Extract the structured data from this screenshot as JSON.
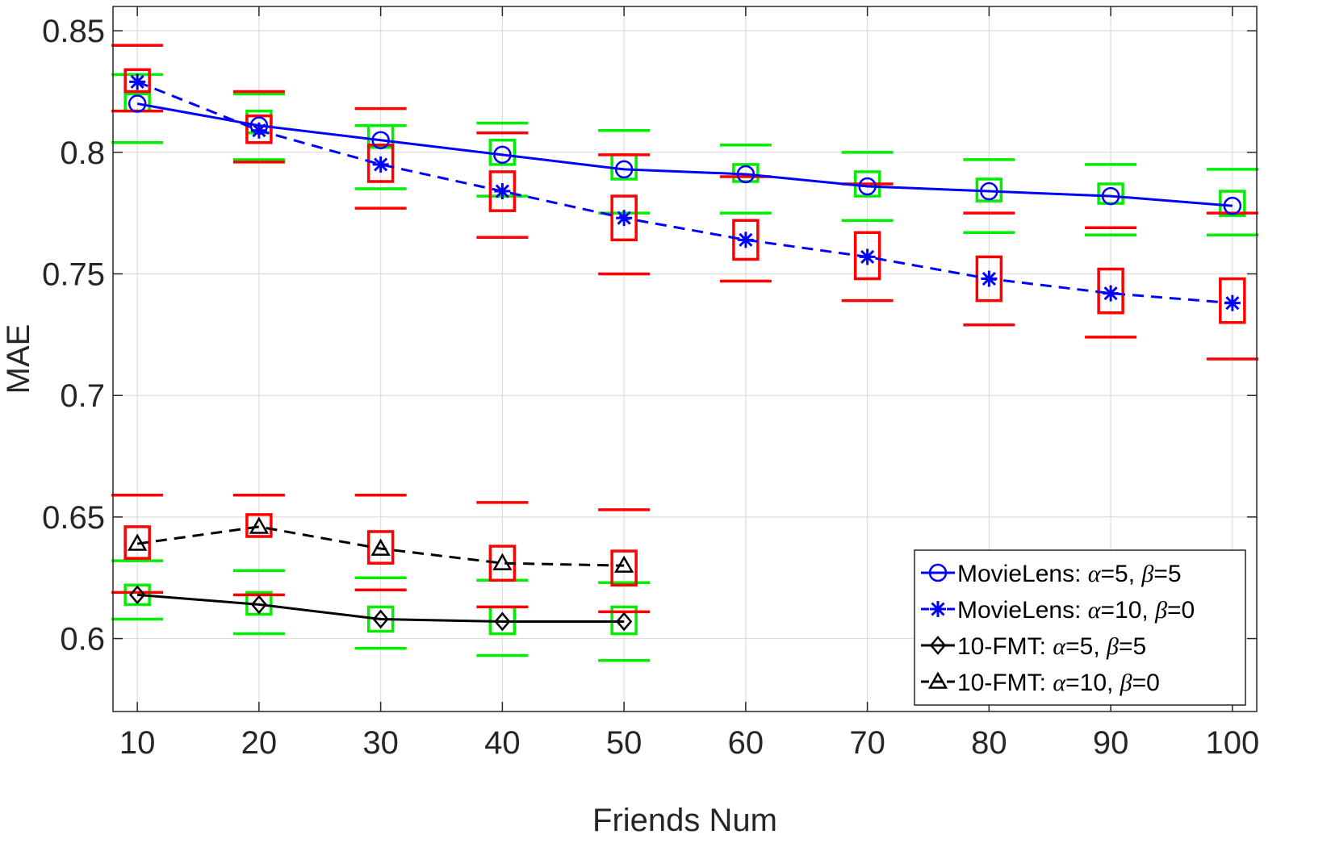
{
  "chart_data": {
    "type": "line",
    "title": "",
    "xlabel": "Friends Num",
    "ylabel": "MAE",
    "xlim": [
      8,
      102
    ],
    "ylim": [
      0.57,
      0.86
    ],
    "x_ticks": [
      10,
      20,
      30,
      40,
      50,
      60,
      70,
      80,
      90,
      100
    ],
    "y_ticks": [
      0.6,
      0.65,
      0.7,
      0.75,
      0.8,
      0.85
    ],
    "y_tick_labels": [
      "0.6",
      "0.65",
      "0.7",
      "0.75",
      "0.8",
      "0.85"
    ],
    "grid": true,
    "legend_position": "bottom-right",
    "colors": {
      "blue": "#0000ff",
      "black": "#000000",
      "red_box": "#ff0000",
      "green_box": "#00ee00",
      "grid": "#dcdcdc"
    },
    "series": [
      {
        "name": "MovieLens: α=5, β=5",
        "legend": {
          "prefix": "MovieLens: ",
          "sym1": "α",
          "mid": "=5, ",
          "sym2": "β",
          "suffix": "=5"
        },
        "color": "#0000ff",
        "line_style": "solid",
        "marker": "circle",
        "box_color": "#00ee00",
        "x": [
          10,
          20,
          30,
          40,
          50,
          60,
          70,
          80,
          90,
          100
        ],
        "y": [
          0.82,
          0.811,
          0.805,
          0.799,
          0.793,
          0.791,
          0.786,
          0.784,
          0.782,
          0.778
        ],
        "box_low": [
          0.817,
          0.808,
          0.802,
          0.795,
          0.789,
          0.788,
          0.782,
          0.78,
          0.779,
          0.774
        ],
        "box_high": [
          0.824,
          0.817,
          0.811,
          0.805,
          0.799,
          0.795,
          0.792,
          0.789,
          0.787,
          0.784
        ],
        "whisker_low": [
          0.804,
          0.797,
          0.785,
          0.782,
          0.775,
          0.775,
          0.772,
          0.767,
          0.766,
          0.766
        ],
        "whisker_high": [
          0.832,
          0.824,
          0.811,
          0.812,
          0.809,
          0.803,
          0.8,
          0.797,
          0.795,
          0.793
        ]
      },
      {
        "name": "MovieLens: α=10, β=0",
        "legend": {
          "prefix": "MovieLens: ",
          "sym1": "α",
          "mid": "=10, ",
          "sym2": "β",
          "suffix": "=0"
        },
        "color": "#0000ff",
        "line_style": "dashed",
        "marker": "asterisk",
        "box_color": "#ff0000",
        "x": [
          10,
          20,
          30,
          40,
          50,
          60,
          70,
          80,
          90,
          100
        ],
        "y": [
          0.829,
          0.809,
          0.795,
          0.784,
          0.773,
          0.764,
          0.757,
          0.748,
          0.742,
          0.738
        ],
        "box_low": [
          0.825,
          0.804,
          0.788,
          0.776,
          0.764,
          0.756,
          0.748,
          0.739,
          0.734,
          0.73
        ],
        "box_high": [
          0.834,
          0.815,
          0.803,
          0.792,
          0.782,
          0.772,
          0.767,
          0.757,
          0.752,
          0.748
        ],
        "whisker_low": [
          0.817,
          0.796,
          0.777,
          0.765,
          0.75,
          0.747,
          0.739,
          0.729,
          0.724,
          0.715
        ],
        "whisker_high": [
          0.844,
          0.825,
          0.818,
          0.808,
          0.799,
          0.79,
          0.787,
          0.775,
          0.769,
          0.775
        ]
      },
      {
        "name": "10-FMT: α=5, β=5",
        "legend": {
          "prefix": "10-FMT: ",
          "sym1": "α",
          "mid": "=5, ",
          "sym2": "β",
          "suffix": "=5"
        },
        "color": "#000000",
        "line_style": "solid",
        "marker": "diamond",
        "box_color": "#00ee00",
        "x": [
          10,
          20,
          30,
          40,
          50
        ],
        "y": [
          0.618,
          0.614,
          0.608,
          0.607,
          0.607
        ],
        "box_low": [
          0.614,
          0.61,
          0.603,
          0.602,
          0.602
        ],
        "box_high": [
          0.622,
          0.619,
          0.613,
          0.613,
          0.613
        ],
        "whisker_low": [
          0.608,
          0.602,
          0.596,
          0.593,
          0.591
        ],
        "whisker_high": [
          0.632,
          0.628,
          0.625,
          0.624,
          0.623
        ]
      },
      {
        "name": "10-FMT: α=10, β=0",
        "legend": {
          "prefix": "10-FMT: ",
          "sym1": "α",
          "mid": "=10, ",
          "sym2": "β",
          "suffix": "=0"
        },
        "color": "#000000",
        "line_style": "dashed",
        "marker": "triangle",
        "box_color": "#ff0000",
        "x": [
          10,
          20,
          30,
          40,
          50
        ],
        "y": [
          0.639,
          0.646,
          0.637,
          0.631,
          0.63
        ],
        "box_low": [
          0.633,
          0.642,
          0.631,
          0.624,
          0.622
        ],
        "box_high": [
          0.646,
          0.651,
          0.644,
          0.638,
          0.636
        ],
        "whisker_low": [
          0.619,
          0.618,
          0.62,
          0.613,
          0.611
        ],
        "whisker_high": [
          0.659,
          0.659,
          0.659,
          0.656,
          0.653
        ]
      }
    ]
  }
}
